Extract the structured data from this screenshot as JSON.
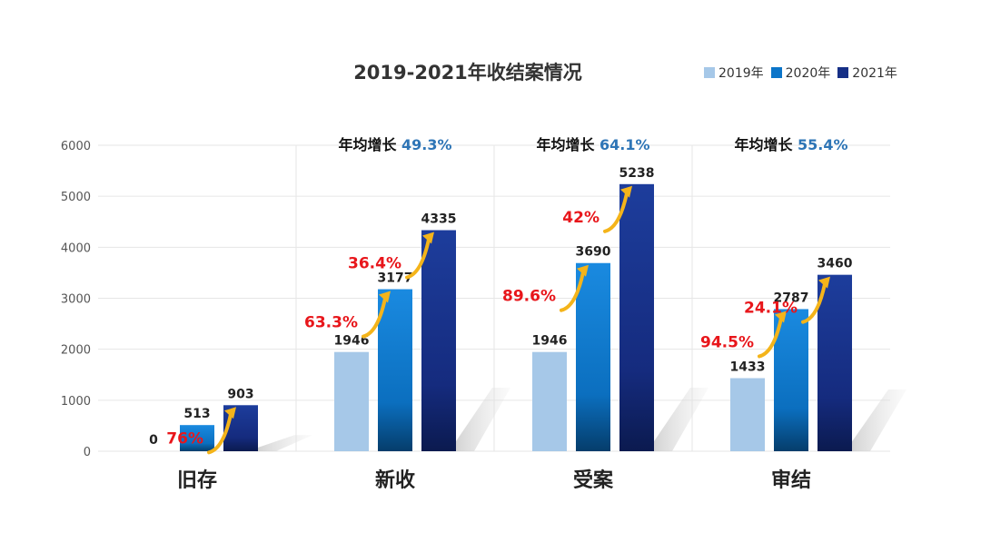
{
  "chart_data": {
    "type": "bar",
    "title": "2019-2021年收结案情况",
    "categories": [
      "旧存",
      "新收",
      "受案",
      "审结"
    ],
    "series": [
      {
        "name": "2019年",
        "values": [
          0,
          1946,
          1946,
          1433
        ],
        "color": "#a6c8e8"
      },
      {
        "name": "2020年",
        "values": [
          513,
          3177,
          3690,
          2787
        ],
        "color": "#0b75c9"
      },
      {
        "name": "2021年",
        "values": [
          903,
          4335,
          5238,
          3460
        ],
        "color": "#162f86"
      }
    ],
    "ylim": [
      0,
      6000
    ],
    "yticks": [
      0,
      1000,
      2000,
      3000,
      4000,
      5000,
      6000
    ],
    "grid": true,
    "legend_position": "top-right",
    "growth_labels": [
      {
        "category": "旧存",
        "from": "2020年",
        "to": "2021年",
        "text": "76%"
      },
      {
        "category": "新收",
        "from": "2019年",
        "to": "2020年",
        "text": "63.3%"
      },
      {
        "category": "新收",
        "from": "2020年",
        "to": "2021年",
        "text": "36.4%"
      },
      {
        "category": "受案",
        "from": "2019年",
        "to": "2020年",
        "text": "89.6%"
      },
      {
        "category": "受案",
        "from": "2020年",
        "to": "2021年",
        "text": "42%"
      },
      {
        "category": "审结",
        "from": "2019年",
        "to": "2020年",
        "text": "94.5%"
      },
      {
        "category": "审结",
        "from": "2020年",
        "to": "2021年",
        "text": "24.1%"
      }
    ],
    "annual_growth": [
      {
        "category": "新收",
        "label": "年均增长",
        "value": "49.3%"
      },
      {
        "category": "受案",
        "label": "年均增长",
        "value": "64.1%"
      },
      {
        "category": "审结",
        "label": "年均增长",
        "value": "55.4%"
      }
    ],
    "colors": {
      "growth_text": "#e8161b",
      "annual_value": "#2e75b6",
      "arrow": "#f4b41a",
      "axis_text": "#555555",
      "grid": "#e6e6e6"
    }
  }
}
